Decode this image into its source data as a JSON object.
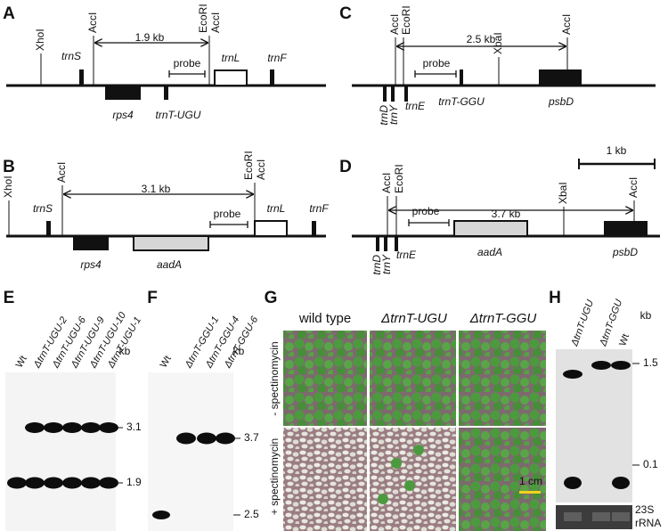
{
  "panels": {
    "A": {
      "label": "A",
      "sites": [
        "XhoI",
        "AccI",
        "EcoRI",
        "AccI"
      ],
      "fragment": "1.9 kb",
      "probe": "probe",
      "genes": [
        "trnS",
        "rps4",
        "trnT-UGU",
        "trnL",
        "trnF"
      ]
    },
    "B": {
      "label": "B",
      "sites": [
        "XhoI",
        "AccI",
        "EcoRI",
        "AccI"
      ],
      "fragment": "3.1 kb",
      "probe": "probe",
      "genes": [
        "trnS",
        "rps4",
        "aadA",
        "trnL",
        "trnF"
      ]
    },
    "C": {
      "label": "C",
      "sites": [
        "AccI",
        "EcoRI",
        "XbaI",
        "AccI"
      ],
      "fragment": "2.5 kb",
      "probe": "probe",
      "genes": [
        "trnD",
        "trnY",
        "trnE",
        "trnT-GGU",
        "psbD"
      ]
    },
    "D": {
      "label": "D",
      "scale_bar": "1 kb",
      "sites": [
        "AccI",
        "EcoRI",
        "XbaI",
        "AccI"
      ],
      "fragment": "3.7 kb",
      "probe": "probe",
      "genes": [
        "trnD",
        "trnY",
        "trnE",
        "aadA",
        "psbD"
      ]
    },
    "E": {
      "label": "E",
      "lanes": [
        "Wt",
        "ΔtrnT-UGU-2",
        "ΔtrnT-UGU-6",
        "ΔtrnT-UGU-9",
        "ΔtrnT-UGU-10",
        "ΔtrnT-UGU-1"
      ],
      "unit": "kb",
      "markers": [
        "3.1",
        "1.9"
      ]
    },
    "F": {
      "label": "F",
      "lanes": [
        "Wt",
        "ΔtrnT-GGU-1",
        "ΔtrnT-GGU-4",
        "ΔtrnT-GGU-6"
      ],
      "unit": "kb",
      "markers": [
        "3.7",
        "2.5"
      ]
    },
    "G": {
      "label": "G",
      "columns": [
        "wild type",
        "ΔtrnT-UGU",
        "ΔtrnT-GGU"
      ],
      "rows": [
        "- spectinomycin",
        "+ spectinomycin"
      ],
      "scale_bar": "1 cm"
    },
    "H": {
      "label": "H",
      "lanes": [
        "ΔtrnT-UGU",
        "ΔtrnT-GGU",
        "Wt"
      ],
      "unit": "kb",
      "markers": [
        "1.5",
        "0.1"
      ],
      "loading_control": [
        "23S",
        "rRNA"
      ]
    }
  }
}
